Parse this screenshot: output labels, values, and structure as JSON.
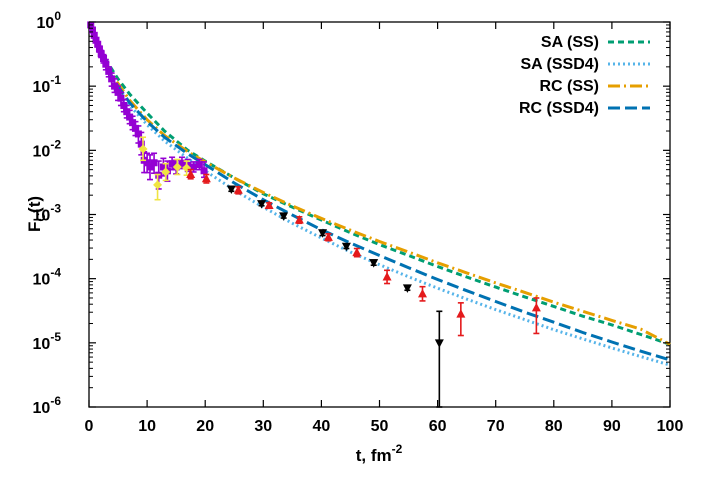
{
  "chart_data": {
    "type": "line",
    "xlabel": "t, fm",
    "xlabel_sup": "-2",
    "ylabel_main": "F",
    "ylabel_sub": "C",
    "ylabel_tail": "(t)",
    "xlim": [
      0,
      100
    ],
    "ylim": [
      1e-06,
      1
    ],
    "yscale": "log",
    "grid": false,
    "legend_position": "top-right",
    "x_ticks": [
      0,
      10,
      20,
      30,
      40,
      50,
      60,
      70,
      80,
      90,
      100
    ],
    "x_tick_labels": [
      "0",
      "10",
      "20",
      "30",
      "40",
      "50",
      "60",
      "70",
      "80",
      "90",
      "100"
    ],
    "y_ticks": [
      1,
      0.1,
      0.01,
      0.001,
      0.0001,
      1e-05,
      1e-06
    ],
    "y_tick_base": [
      "10",
      "10",
      "10",
      "10",
      "10",
      "10",
      "10"
    ],
    "y_tick_exp": [
      "0",
      "-1",
      "-2",
      "-3",
      "-4",
      "-5",
      "-6"
    ],
    "series": [
      {
        "name": "SA (SS)",
        "color": "#009e73",
        "dash": "dashed",
        "points": [
          [
            0,
            1
          ],
          [
            1,
            0.6
          ],
          [
            2,
            0.38
          ],
          [
            3,
            0.25
          ],
          [
            4,
            0.18
          ],
          [
            5,
            0.13
          ],
          [
            7,
            0.075
          ],
          [
            10,
            0.038
          ],
          [
            13,
            0.02
          ],
          [
            17,
            0.01
          ],
          [
            20,
            0.0068
          ],
          [
            25,
            0.0037
          ],
          [
            30,
            0.0021
          ],
          [
            35,
            0.0013
          ],
          [
            40,
            0.00082
          ],
          [
            45,
            0.00052
          ],
          [
            50,
            0.00034
          ],
          [
            55,
            0.00023
          ],
          [
            60,
            0.000155
          ],
          [
            65,
            0.000106
          ],
          [
            70,
            7.4e-05
          ],
          [
            75,
            5.2e-05
          ],
          [
            80,
            3.7e-05
          ],
          [
            85,
            2.6e-05
          ],
          [
            90,
            1.9e-05
          ],
          [
            95,
            1.35e-05
          ],
          [
            100,
            9.5e-06
          ]
        ]
      },
      {
        "name": "SA (SSD4)",
        "color": "#56b4e9",
        "dash": "dotted",
        "points": [
          [
            0,
            1
          ],
          [
            1,
            0.6
          ],
          [
            2,
            0.35
          ],
          [
            3,
            0.2
          ],
          [
            4,
            0.13
          ],
          [
            5,
            0.09
          ],
          [
            7,
            0.05
          ],
          [
            10,
            0.025
          ],
          [
            13,
            0.014
          ],
          [
            17,
            0.0075
          ],
          [
            20,
            0.0048
          ],
          [
            25,
            0.0024
          ],
          [
            30,
            0.0013
          ],
          [
            35,
            0.00073
          ],
          [
            40,
            0.00043
          ],
          [
            45,
            0.00026
          ],
          [
            50,
            0.000165
          ],
          [
            55,
            0.000107
          ],
          [
            60,
            7.1e-05
          ],
          [
            65,
            4.8e-05
          ],
          [
            70,
            3.3e-05
          ],
          [
            75,
            2.3e-05
          ],
          [
            80,
            1.6e-05
          ],
          [
            85,
            1.15e-05
          ],
          [
            90,
            8.3e-06
          ],
          [
            95,
            6.1e-06
          ],
          [
            100,
            4.5e-06
          ]
        ]
      },
      {
        "name": "RC (SS)",
        "color": "#e69f00",
        "dash": "dashdot",
        "points": [
          [
            0,
            1
          ],
          [
            1,
            0.6
          ],
          [
            2,
            0.36
          ],
          [
            3,
            0.22
          ],
          [
            4,
            0.15
          ],
          [
            5,
            0.11
          ],
          [
            7,
            0.06
          ],
          [
            10,
            0.03
          ],
          [
            13,
            0.017
          ],
          [
            17,
            0.0095
          ],
          [
            20,
            0.0066
          ],
          [
            25,
            0.0037
          ],
          [
            30,
            0.0022
          ],
          [
            35,
            0.00136
          ],
          [
            40,
            0.00087
          ],
          [
            45,
            0.00057
          ],
          [
            50,
            0.00038
          ],
          [
            55,
            0.00026
          ],
          [
            60,
            0.000177
          ],
          [
            65,
            0.000123
          ],
          [
            70,
            8.6e-05
          ],
          [
            75,
            6.1e-05
          ],
          [
            80,
            4.3e-05
          ],
          [
            85,
            3.1e-05
          ],
          [
            90,
            2.24e-05
          ],
          [
            95,
            1.63e-05
          ],
          [
            100,
            9.5e-06
          ]
        ]
      },
      {
        "name": "RC (SSD4)",
        "color": "#0072b2",
        "dash": "longdash",
        "points": [
          [
            0,
            1
          ],
          [
            1,
            0.6
          ],
          [
            2,
            0.35
          ],
          [
            3,
            0.21
          ],
          [
            4,
            0.14
          ],
          [
            5,
            0.1
          ],
          [
            7,
            0.055
          ],
          [
            10,
            0.028
          ],
          [
            13,
            0.016
          ],
          [
            17,
            0.0088
          ],
          [
            20,
            0.006
          ],
          [
            25,
            0.0031
          ],
          [
            30,
            0.0017
          ],
          [
            35,
            0.00098
          ],
          [
            40,
            0.00058
          ],
          [
            45,
            0.00036
          ],
          [
            50,
            0.00023
          ],
          [
            55,
            0.000148
          ],
          [
            60,
            9.7e-05
          ],
          [
            65,
            6.5e-05
          ],
          [
            70,
            4.4e-05
          ],
          [
            75,
            3e-05
          ],
          [
            80,
            2.1e-05
          ],
          [
            85,
            1.45e-05
          ],
          [
            90,
            1.03e-05
          ],
          [
            95,
            7.4e-06
          ],
          [
            100,
            5.4e-06
          ]
        ]
      }
    ],
    "data_sets": [
      {
        "color": "#9400d3",
        "marker": "square",
        "points": [
          [
            0.3,
            0.9,
            0.95,
            0.85
          ],
          [
            0.6,
            0.75,
            0.8,
            0.7
          ],
          [
            0.9,
            0.62,
            0.66,
            0.58
          ],
          [
            1.2,
            0.52,
            0.56,
            0.48
          ],
          [
            1.5,
            0.45,
            0.49,
            0.41
          ],
          [
            1.8,
            0.38,
            0.42,
            0.34
          ],
          [
            2.1,
            0.32,
            0.36,
            0.28
          ],
          [
            2.5,
            0.27,
            0.31,
            0.23
          ],
          [
            2.9,
            0.22,
            0.26,
            0.18
          ],
          [
            3.4,
            0.17,
            0.2,
            0.14
          ],
          [
            3.9,
            0.13,
            0.16,
            0.1
          ],
          [
            4.4,
            0.1,
            0.13,
            0.08
          ],
          [
            5,
            0.08,
            0.1,
            0.06
          ],
          [
            5.5,
            0.065,
            0.08,
            0.05
          ],
          [
            6,
            0.05,
            0.062,
            0.04
          ],
          [
            6.5,
            0.04,
            0.05,
            0.032
          ],
          [
            7,
            0.033,
            0.042,
            0.026
          ],
          [
            7.5,
            0.027,
            0.034,
            0.021
          ],
          [
            8,
            0.022,
            0.028,
            0.017
          ],
          [
            8.5,
            0.018,
            0.024,
            0.013
          ],
          [
            9,
            0.0125,
            0.019,
            0.0085
          ],
          [
            9.5,
            0.007,
            0.0095,
            0.0045
          ],
          [
            10,
            0.0064,
            0.009,
            0.0045
          ],
          [
            10.5,
            0.0055,
            0.0085,
            0.0035
          ],
          [
            11.2,
            0.0064,
            0.009,
            0.0044
          ],
          [
            12,
            0.0041,
            0.0068,
            0.0025
          ],
          [
            12.8,
            0.0055,
            0.0075,
            0.004
          ],
          [
            13.5,
            0.0048,
            0.0068,
            0.0033
          ],
          [
            14.3,
            0.0062,
            0.0078,
            0.005
          ],
          [
            15,
            0.0055,
            0.007,
            0.0043
          ],
          [
            16,
            0.0063,
            0.0078,
            0.0052
          ],
          [
            17,
            0.0058,
            0.0072,
            0.0047
          ],
          [
            18,
            0.0055,
            0.0066,
            0.0046
          ],
          [
            19,
            0.006,
            0.0072,
            0.005
          ],
          [
            19.8,
            0.0048,
            0.0066,
            0.0038
          ]
        ]
      },
      {
        "color": "#f0e442",
        "marker": "diamond",
        "points": [
          [
            9.3,
            0.0105,
            0.016,
            0.007
          ],
          [
            11.8,
            0.0029,
            0.0042,
            0.0017
          ],
          [
            13.2,
            0.0046,
            0.0062,
            0.0034
          ],
          [
            15.2,
            0.0055,
            0.0072,
            0.0042
          ],
          [
            16.8,
            0.0053,
            0.0068,
            0.0041
          ]
        ]
      },
      {
        "color": "#e41a1c",
        "marker": "triangle-up",
        "points": [
          [
            17.5,
            0.0042,
            0.005,
            0.0036
          ],
          [
            20.2,
            0.0036,
            0.0042,
            0.0031
          ],
          [
            25.7,
            0.0024,
            0.0027,
            0.0021
          ],
          [
            31,
            0.00138,
            0.00152,
            0.00125
          ],
          [
            36.2,
            0.00082,
            0.00092,
            0.00073
          ],
          [
            41.2,
            0.00044,
            0.0005,
            0.00039
          ],
          [
            46.1,
            0.000255,
            0.000295,
            0.00022
          ],
          [
            51.3,
            0.000106,
            0.000135,
            8.4e-05
          ],
          [
            57.4,
            5.8e-05,
            7.5e-05,
            4.5e-05
          ],
          [
            64,
            2.8e-05,
            4.2e-05,
            1.3e-05
          ],
          [
            77,
            3.5e-05,
            5e-05,
            1.4e-05
          ]
        ]
      },
      {
        "color": "#000000",
        "marker": "triangle-down",
        "points": [
          [
            24.5,
            0.0025,
            0.0027,
            0.0023
          ],
          [
            29.7,
            0.00148,
            0.0016,
            0.00137
          ],
          [
            33.5,
            0.00095,
            0.00103,
            0.00088
          ],
          [
            40.2,
            0.00052,
            0.00057,
            0.00047
          ],
          [
            44.3,
            0.00032,
            0.000345,
            0.000295
          ],
          [
            49,
            0.000178,
            0.000195,
            0.000162
          ],
          [
            54.8,
            7.2e-05,
            7.8e-05,
            6.6e-05
          ],
          [
            60.3,
            1e-05,
            3.1e-05,
            1e-06
          ]
        ]
      }
    ]
  }
}
